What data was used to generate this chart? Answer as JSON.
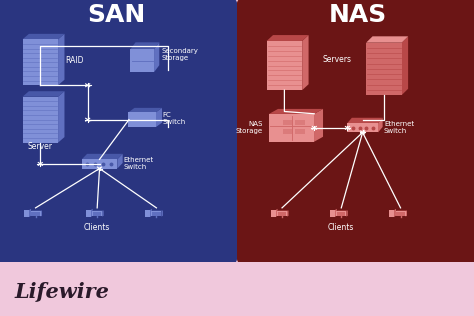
{
  "bg_color": "#f0c8dc",
  "san_bg": "#2a3580",
  "nas_bg": "#6b1515",
  "san_title": "SAN",
  "nas_title": "NAS",
  "title_color": "#ffffff",
  "label_color": "#ffffff",
  "line_color": "#ffffff",
  "san_color_light": "#8090d8",
  "san_color_mid": "#6070c0",
  "san_color_dark": "#4858a8",
  "nas_color_light": "#e89090",
  "nas_color_mid": "#d06868",
  "nas_color_dark": "#b84848",
  "lifewire_text": "Lifewire",
  "lifewire_color": "#2a1a2a",
  "fig_width": 4.74,
  "fig_height": 3.16,
  "dpi": 100
}
